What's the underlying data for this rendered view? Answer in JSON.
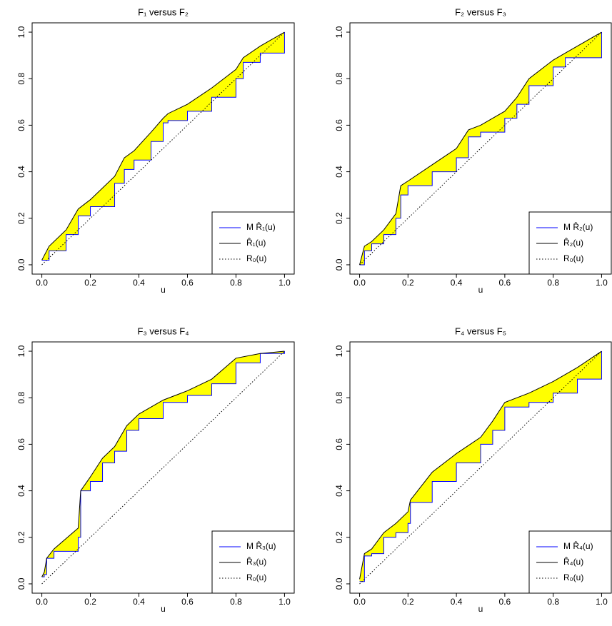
{
  "chart_data": [
    {
      "type": "line",
      "title": "F₁ versus F₂",
      "xlabel": "u",
      "xlim": [
        -0.04,
        1.04
      ],
      "ylim": [
        -0.04,
        1.04
      ],
      "xticks": [
        {
          "value": 0,
          "label": "0.0"
        },
        {
          "value": 0.2,
          "label": "0.2"
        },
        {
          "value": 0.4,
          "label": "0.4"
        },
        {
          "value": 0.6,
          "label": "0.6"
        },
        {
          "value": 0.8,
          "label": "0.8"
        },
        {
          "value": 1,
          "label": "1.0"
        }
      ],
      "yticks": [
        {
          "value": 0,
          "label": "0.0"
        },
        {
          "value": 0.2,
          "label": "0.2"
        },
        {
          "value": 0.4,
          "label": "0.4"
        },
        {
          "value": 0.6,
          "label": "0.6"
        },
        {
          "value": 0.8,
          "label": "0.8"
        },
        {
          "value": 1,
          "label": "1.0"
        }
      ],
      "x": [
        0,
        0.03,
        0.1,
        0.15,
        0.2,
        0.3,
        0.34,
        0.38,
        0.45,
        0.5,
        0.52,
        0.6,
        0.7,
        0.8,
        0.83,
        0.9,
        1
      ],
      "fill_color": "#ffff00",
      "legend": "lower right",
      "series": [
        {
          "name": "M R̂₁(u)",
          "color": "#0000ff",
          "style": "step",
          "values": [
            0.02,
            0.06,
            0.13,
            0.21,
            0.25,
            0.35,
            0.41,
            0.45,
            0.53,
            0.61,
            0.62,
            0.66,
            0.72,
            0.8,
            0.87,
            0.91,
            1
          ]
        },
        {
          "name": "R̂₁(u)",
          "color": "#000000",
          "style": "solid",
          "values": [
            0.02,
            0.08,
            0.15,
            0.24,
            0.28,
            0.38,
            0.46,
            0.49,
            0.57,
            0.63,
            0.65,
            0.69,
            0.76,
            0.84,
            0.89,
            0.94,
            1
          ]
        },
        {
          "name": "R₀(u)",
          "color": "#000000",
          "style": "dotted",
          "x": [
            0,
            1
          ],
          "values": [
            0,
            1
          ]
        }
      ]
    },
    {
      "type": "line",
      "title": "F₂ versus F₃",
      "xlabel": "u",
      "xlim": [
        -0.04,
        1.04
      ],
      "ylim": [
        -0.04,
        1.04
      ],
      "xticks": [
        {
          "value": 0,
          "label": "0.0"
        },
        {
          "value": 0.2,
          "label": "0.2"
        },
        {
          "value": 0.4,
          "label": "0.4"
        },
        {
          "value": 0.6,
          "label": "0.6"
        },
        {
          "value": 0.8,
          "label": "0.8"
        },
        {
          "value": 1,
          "label": "1.0"
        }
      ],
      "yticks": [
        {
          "value": 0,
          "label": "0.0"
        },
        {
          "value": 0.2,
          "label": "0.2"
        },
        {
          "value": 0.4,
          "label": "0.4"
        },
        {
          "value": 0.6,
          "label": "0.6"
        },
        {
          "value": 0.8,
          "label": "0.8"
        },
        {
          "value": 1,
          "label": "1.0"
        }
      ],
      "x": [
        0,
        0.02,
        0.05,
        0.1,
        0.15,
        0.17,
        0.2,
        0.3,
        0.4,
        0.45,
        0.5,
        0.6,
        0.65,
        0.7,
        0.8,
        0.85,
        1
      ],
      "fill_color": "#ffff00",
      "legend": "lower right",
      "series": [
        {
          "name": "M R̂₂(u)",
          "color": "#0000ff",
          "style": "step",
          "values": [
            0,
            0.06,
            0.09,
            0.13,
            0.2,
            0.3,
            0.34,
            0.4,
            0.46,
            0.55,
            0.57,
            0.63,
            0.69,
            0.77,
            0.85,
            0.89,
            1
          ]
        },
        {
          "name": "R̂₂(u)",
          "color": "#000000",
          "style": "solid",
          "values": [
            0,
            0.08,
            0.1,
            0.15,
            0.22,
            0.34,
            0.36,
            0.43,
            0.5,
            0.58,
            0.6,
            0.66,
            0.72,
            0.8,
            0.88,
            0.91,
            1
          ]
        },
        {
          "name": "R₀(u)",
          "color": "#000000",
          "style": "dotted",
          "x": [
            0,
            1
          ],
          "values": [
            0,
            1
          ]
        }
      ]
    },
    {
      "type": "line",
      "title": "F₃ versus F₄",
      "xlabel": "u",
      "xlim": [
        -0.04,
        1.04
      ],
      "ylim": [
        -0.04,
        1.04
      ],
      "xticks": [
        {
          "value": 0,
          "label": "0.0"
        },
        {
          "value": 0.2,
          "label": "0.2"
        },
        {
          "value": 0.4,
          "label": "0.4"
        },
        {
          "value": 0.6,
          "label": "0.6"
        },
        {
          "value": 0.8,
          "label": "0.8"
        },
        {
          "value": 1,
          "label": "1.0"
        }
      ],
      "yticks": [
        {
          "value": 0,
          "label": "0.0"
        },
        {
          "value": 0.2,
          "label": "0.2"
        },
        {
          "value": 0.4,
          "label": "0.4"
        },
        {
          "value": 0.6,
          "label": "0.6"
        },
        {
          "value": 0.8,
          "label": "0.8"
        },
        {
          "value": 1,
          "label": "1.0"
        }
      ],
      "x": [
        0,
        0.01,
        0.02,
        0.05,
        0.15,
        0.16,
        0.2,
        0.25,
        0.3,
        0.35,
        0.4,
        0.5,
        0.6,
        0.7,
        0.8,
        0.9,
        1
      ],
      "fill_color": "#ffff00",
      "legend": "lower right",
      "series": [
        {
          "name": "M R̂₃(u)",
          "color": "#0000ff",
          "style": "step",
          "values": [
            0.03,
            0.04,
            0.11,
            0.14,
            0.2,
            0.4,
            0.44,
            0.52,
            0.57,
            0.66,
            0.71,
            0.78,
            0.81,
            0.86,
            0.95,
            0.99,
            1
          ]
        },
        {
          "name": "R̂₃(u)",
          "color": "#000000",
          "style": "solid",
          "values": [
            0.03,
            0.05,
            0.11,
            0.15,
            0.24,
            0.4,
            0.46,
            0.54,
            0.59,
            0.68,
            0.73,
            0.79,
            0.83,
            0.88,
            0.97,
            0.99,
            1
          ]
        },
        {
          "name": "R₀(u)",
          "color": "#000000",
          "style": "dotted",
          "x": [
            0,
            1
          ],
          "values": [
            0,
            1
          ]
        }
      ]
    },
    {
      "type": "line",
      "title": "F₄ versus F₅",
      "xlabel": "u",
      "xlim": [
        -0.04,
        1.04
      ],
      "ylim": [
        -0.04,
        1.04
      ],
      "xticks": [
        {
          "value": 0,
          "label": "0.0"
        },
        {
          "value": 0.2,
          "label": "0.2"
        },
        {
          "value": 0.4,
          "label": "0.4"
        },
        {
          "value": 0.6,
          "label": "0.6"
        },
        {
          "value": 0.8,
          "label": "0.8"
        },
        {
          "value": 1,
          "label": "1.0"
        }
      ],
      "yticks": [
        {
          "value": 0,
          "label": "0.0"
        },
        {
          "value": 0.2,
          "label": "0.2"
        },
        {
          "value": 0.4,
          "label": "0.4"
        },
        {
          "value": 0.6,
          "label": "0.6"
        },
        {
          "value": 0.8,
          "label": "0.8"
        },
        {
          "value": 1,
          "label": "1.0"
        }
      ],
      "x": [
        0,
        0.02,
        0.05,
        0.1,
        0.15,
        0.2,
        0.21,
        0.3,
        0.4,
        0.5,
        0.55,
        0.6,
        0.7,
        0.8,
        0.9,
        1
      ],
      "fill_color": "#ffff00",
      "legend": "lower right",
      "series": [
        {
          "name": "M R̂₄(u)",
          "color": "#0000ff",
          "style": "step",
          "values": [
            0.01,
            0.12,
            0.13,
            0.2,
            0.22,
            0.26,
            0.35,
            0.44,
            0.52,
            0.6,
            0.66,
            0.76,
            0.78,
            0.82,
            0.88,
            1
          ]
        },
        {
          "name": "R̂₄(u)",
          "color": "#000000",
          "style": "solid",
          "values": [
            0.02,
            0.13,
            0.15,
            0.22,
            0.26,
            0.31,
            0.36,
            0.48,
            0.56,
            0.63,
            0.7,
            0.78,
            0.82,
            0.87,
            0.93,
            1
          ]
        },
        {
          "name": "R₀(u)",
          "color": "#000000",
          "style": "dotted",
          "x": [
            0,
            1
          ],
          "values": [
            0,
            1
          ]
        }
      ]
    }
  ]
}
